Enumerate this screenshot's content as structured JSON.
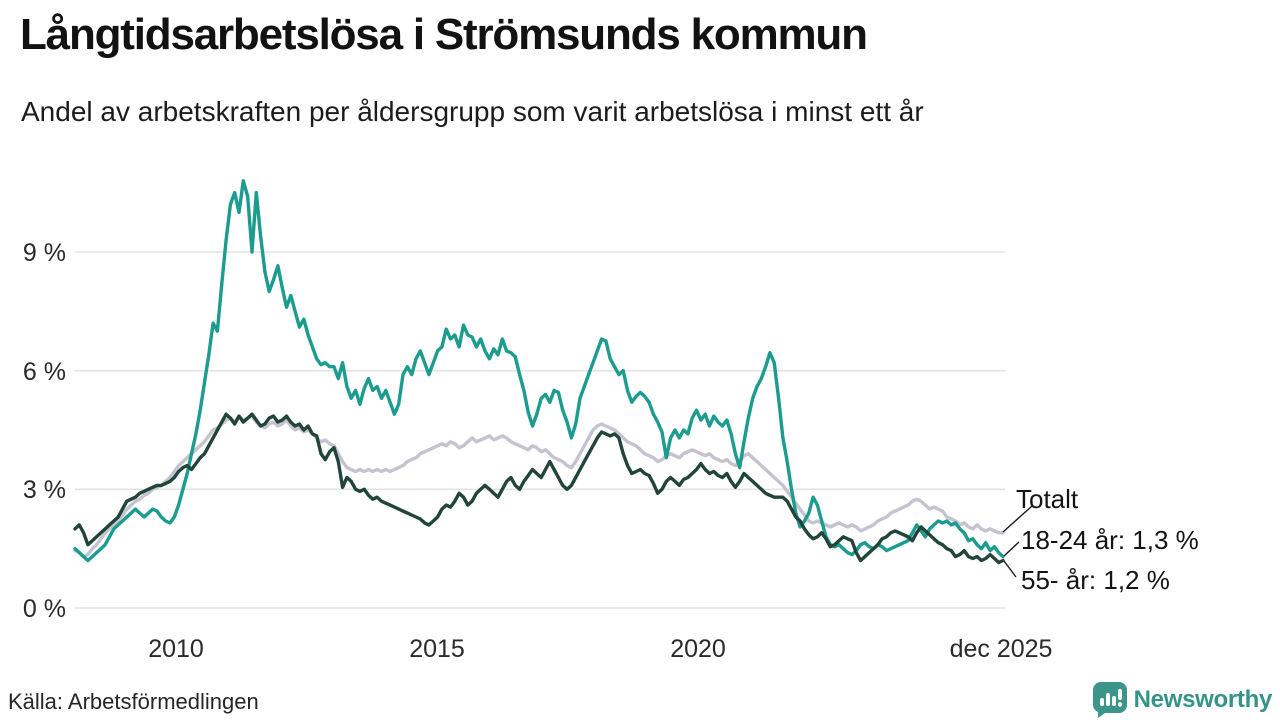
{
  "header": {
    "title": "Långtidsarbetslösa i Strömsunds kommun",
    "subtitle": "Andel av arbetskraften per åldersgrupp som varit arbetslösa i minst ett år"
  },
  "footer": {
    "source": "Källa: Arbetsförmedlingen",
    "brand": "Newsworthy"
  },
  "chart_data": {
    "type": "line",
    "title": "Långtidsarbetslösa i Strömsunds kommun",
    "subtitle": "Andel av arbetskraften per åldersgrupp som varit arbetslösa i minst ett år",
    "unit": "%",
    "x_start_year": 2008,
    "x_points_per_year": 12,
    "x_end_label": "dec 2025",
    "ylim": [
      0,
      11
    ],
    "grid": "horizontal",
    "legend_position": "end-of-line-labels",
    "yticks": [
      {
        "value": 0,
        "label": "0 %"
      },
      {
        "value": 3,
        "label": "3 %"
      },
      {
        "value": 6,
        "label": "6 %"
      },
      {
        "value": 9,
        "label": "9 %"
      }
    ],
    "xticks": [
      {
        "year": 2010,
        "label": "2010"
      },
      {
        "year": 2015,
        "label": "2015"
      },
      {
        "year": 2020,
        "label": "2020"
      },
      {
        "year": 2025.92,
        "label": "dec 2025"
      }
    ],
    "annotations": [
      {
        "label": "Totalt",
        "series": "Totalt"
      },
      {
        "label": "18-24 år: 1,3 %",
        "series": "18-24 år"
      },
      {
        "label": "55- år: 1,2 %",
        "series": "55- år"
      }
    ],
    "series": [
      {
        "id": "totalt",
        "name": "Totalt",
        "color": "#c5c3cf",
        "end_value_pct": 1.9,
        "values": [
          1.45,
          1.4,
          1.3,
          1.35,
          1.5,
          1.6,
          1.75,
          1.9,
          2.0,
          2.1,
          2.2,
          2.35,
          2.5,
          2.6,
          2.7,
          2.75,
          2.85,
          2.9,
          3.0,
          3.05,
          3.1,
          3.2,
          3.3,
          3.45,
          3.6,
          3.7,
          3.8,
          3.9,
          4.0,
          4.1,
          4.2,
          4.35,
          4.5,
          4.55,
          4.65,
          4.75,
          4.8,
          4.7,
          4.85,
          4.75,
          4.8,
          4.85,
          4.7,
          4.6,
          4.55,
          4.65,
          4.7,
          4.6,
          4.65,
          4.75,
          4.6,
          4.5,
          4.55,
          4.45,
          4.5,
          4.4,
          4.3,
          4.2,
          4.25,
          4.15,
          4.1,
          3.9,
          3.7,
          3.55,
          3.5,
          3.45,
          3.5,
          3.45,
          3.5,
          3.45,
          3.5,
          3.45,
          3.5,
          3.45,
          3.5,
          3.55,
          3.6,
          3.7,
          3.75,
          3.8,
          3.9,
          3.95,
          4.0,
          4.05,
          4.1,
          4.15,
          4.1,
          4.2,
          4.15,
          4.05,
          4.1,
          4.2,
          4.3,
          4.2,
          4.25,
          4.3,
          4.35,
          4.25,
          4.3,
          4.35,
          4.3,
          4.2,
          4.15,
          4.1,
          4.05,
          4.0,
          4.1,
          4.05,
          3.95,
          4.0,
          3.9,
          3.8,
          3.75,
          3.7,
          3.6,
          3.55,
          3.7,
          3.9,
          4.1,
          4.3,
          4.5,
          4.6,
          4.65,
          4.6,
          4.55,
          4.5,
          4.4,
          4.3,
          4.2,
          4.15,
          4.1,
          4.0,
          3.9,
          3.85,
          3.8,
          3.7,
          3.75,
          3.85,
          3.9,
          3.85,
          3.8,
          3.9,
          3.95,
          4.0,
          3.95,
          3.9,
          3.85,
          3.9,
          3.8,
          3.75,
          3.7,
          3.75,
          3.65,
          3.6,
          3.7,
          3.85,
          3.9,
          3.8,
          3.7,
          3.6,
          3.5,
          3.4,
          3.3,
          3.2,
          3.1,
          2.95,
          2.8,
          2.65,
          2.5,
          2.35,
          2.2,
          2.15,
          2.2,
          2.15,
          2.1,
          2.05,
          2.1,
          2.15,
          2.1,
          2.05,
          2.1,
          2.05,
          1.95,
          2.0,
          2.05,
          2.1,
          2.2,
          2.25,
          2.3,
          2.4,
          2.45,
          2.5,
          2.55,
          2.6,
          2.7,
          2.75,
          2.7,
          2.6,
          2.5,
          2.55,
          2.5,
          2.45,
          2.3,
          2.25,
          2.2,
          2.1,
          2.15,
          2.05,
          2.0,
          2.1,
          2.0,
          1.95,
          2.0,
          1.95,
          1.9,
          1.9
        ]
      },
      {
        "id": "18-24",
        "name": "18-24 år",
        "color": "#1b9c8f",
        "end_value_pct": 1.3,
        "values": [
          1.5,
          1.4,
          1.3,
          1.2,
          1.3,
          1.4,
          1.5,
          1.6,
          1.8,
          2.0,
          2.1,
          2.2,
          2.3,
          2.4,
          2.5,
          2.4,
          2.3,
          2.4,
          2.5,
          2.45,
          2.3,
          2.2,
          2.15,
          2.3,
          2.6,
          3.0,
          3.4,
          3.9,
          4.4,
          5.0,
          5.7,
          6.4,
          7.2,
          7.0,
          8.2,
          9.3,
          10.2,
          10.5,
          10.0,
          10.8,
          10.4,
          9.0,
          10.5,
          9.4,
          8.5,
          8.0,
          8.3,
          8.65,
          8.1,
          7.6,
          7.9,
          7.5,
          7.1,
          7.3,
          6.9,
          6.6,
          6.3,
          6.15,
          6.2,
          6.1,
          6.1,
          5.8,
          6.2,
          5.6,
          5.3,
          5.5,
          5.15,
          5.55,
          5.8,
          5.5,
          5.6,
          5.3,
          5.5,
          5.2,
          4.9,
          5.15,
          5.9,
          6.1,
          5.9,
          6.3,
          6.5,
          6.2,
          5.9,
          6.2,
          6.5,
          6.6,
          7.05,
          6.8,
          6.9,
          6.6,
          7.15,
          6.9,
          6.85,
          6.6,
          6.8,
          6.5,
          6.3,
          6.55,
          6.4,
          6.8,
          6.5,
          6.45,
          6.35,
          5.9,
          5.5,
          4.95,
          4.6,
          4.9,
          5.3,
          5.4,
          5.2,
          5.5,
          5.45,
          5.0,
          4.7,
          4.3,
          4.65,
          5.3,
          5.6,
          5.9,
          6.2,
          6.5,
          6.8,
          6.75,
          6.3,
          6.1,
          5.9,
          6.0,
          5.5,
          5.2,
          5.35,
          5.45,
          5.35,
          5.2,
          4.9,
          4.7,
          4.45,
          3.8,
          4.3,
          4.5,
          4.3,
          4.5,
          4.4,
          4.8,
          5.0,
          4.75,
          4.9,
          4.6,
          4.85,
          4.7,
          4.6,
          4.75,
          4.4,
          3.9,
          3.55,
          4.2,
          4.8,
          5.3,
          5.6,
          5.8,
          6.1,
          6.45,
          6.2,
          5.3,
          4.3,
          3.7,
          3.0,
          2.4,
          2.05,
          2.2,
          2.4,
          2.8,
          2.6,
          2.2,
          1.8,
          1.6,
          1.55,
          1.6,
          1.5,
          1.4,
          1.35,
          1.45,
          1.6,
          1.65,
          1.55,
          1.5,
          1.6,
          1.55,
          1.45,
          1.5,
          1.55,
          1.6,
          1.65,
          1.7,
          1.9,
          2.1,
          1.95,
          1.8,
          2.0,
          2.1,
          2.2,
          2.15,
          2.2,
          2.1,
          2.15,
          2.0,
          1.9,
          1.7,
          1.75,
          1.6,
          1.5,
          1.65,
          1.45,
          1.55,
          1.4,
          1.3
        ]
      },
      {
        "id": "55",
        "name": "55- år",
        "color": "#224539",
        "end_value_pct": 1.2,
        "values": [
          2.0,
          2.1,
          1.9,
          1.6,
          1.7,
          1.8,
          1.9,
          2.0,
          2.1,
          2.2,
          2.3,
          2.5,
          2.7,
          2.75,
          2.8,
          2.9,
          2.95,
          3.0,
          3.05,
          3.1,
          3.1,
          3.15,
          3.2,
          3.3,
          3.45,
          3.55,
          3.6,
          3.5,
          3.65,
          3.8,
          3.9,
          4.1,
          4.3,
          4.5,
          4.7,
          4.9,
          4.8,
          4.65,
          4.85,
          4.7,
          4.8,
          4.9,
          4.75,
          4.6,
          4.65,
          4.8,
          4.85,
          4.7,
          4.75,
          4.85,
          4.7,
          4.6,
          4.65,
          4.5,
          4.6,
          4.4,
          4.35,
          3.9,
          3.75,
          3.95,
          4.05,
          3.7,
          3.05,
          3.3,
          3.2,
          3.0,
          2.95,
          3.0,
          2.85,
          2.75,
          2.8,
          2.7,
          2.65,
          2.6,
          2.55,
          2.5,
          2.45,
          2.4,
          2.35,
          2.3,
          2.25,
          2.15,
          2.1,
          2.2,
          2.3,
          2.5,
          2.6,
          2.55,
          2.7,
          2.9,
          2.8,
          2.6,
          2.7,
          2.9,
          3.0,
          3.1,
          3.0,
          2.9,
          2.8,
          3.0,
          3.2,
          3.3,
          3.1,
          3.0,
          3.2,
          3.35,
          3.5,
          3.4,
          3.3,
          3.5,
          3.7,
          3.5,
          3.3,
          3.1,
          3.0,
          3.1,
          3.3,
          3.5,
          3.7,
          3.9,
          4.1,
          4.3,
          4.45,
          4.4,
          4.35,
          4.4,
          4.3,
          3.9,
          3.6,
          3.4,
          3.45,
          3.5,
          3.4,
          3.35,
          3.15,
          2.9,
          3.0,
          3.2,
          3.3,
          3.2,
          3.1,
          3.25,
          3.3,
          3.4,
          3.5,
          3.65,
          3.5,
          3.4,
          3.45,
          3.35,
          3.3,
          3.4,
          3.2,
          3.05,
          3.2,
          3.4,
          3.3,
          3.2,
          3.1,
          3.0,
          2.9,
          2.85,
          2.8,
          2.8,
          2.8,
          2.7,
          2.5,
          2.3,
          2.2,
          2.0,
          1.85,
          1.75,
          1.8,
          1.9,
          1.75,
          1.55,
          1.6,
          1.7,
          1.8,
          1.75,
          1.7,
          1.4,
          1.2,
          1.3,
          1.4,
          1.5,
          1.6,
          1.75,
          1.8,
          1.9,
          1.95,
          1.9,
          1.85,
          1.8,
          1.7,
          1.9,
          2.05,
          1.95,
          1.85,
          1.75,
          1.65,
          1.6,
          1.5,
          1.45,
          1.3,
          1.35,
          1.45,
          1.3,
          1.25,
          1.3,
          1.2,
          1.25,
          1.35,
          1.25,
          1.15,
          1.2
        ]
      }
    ]
  }
}
